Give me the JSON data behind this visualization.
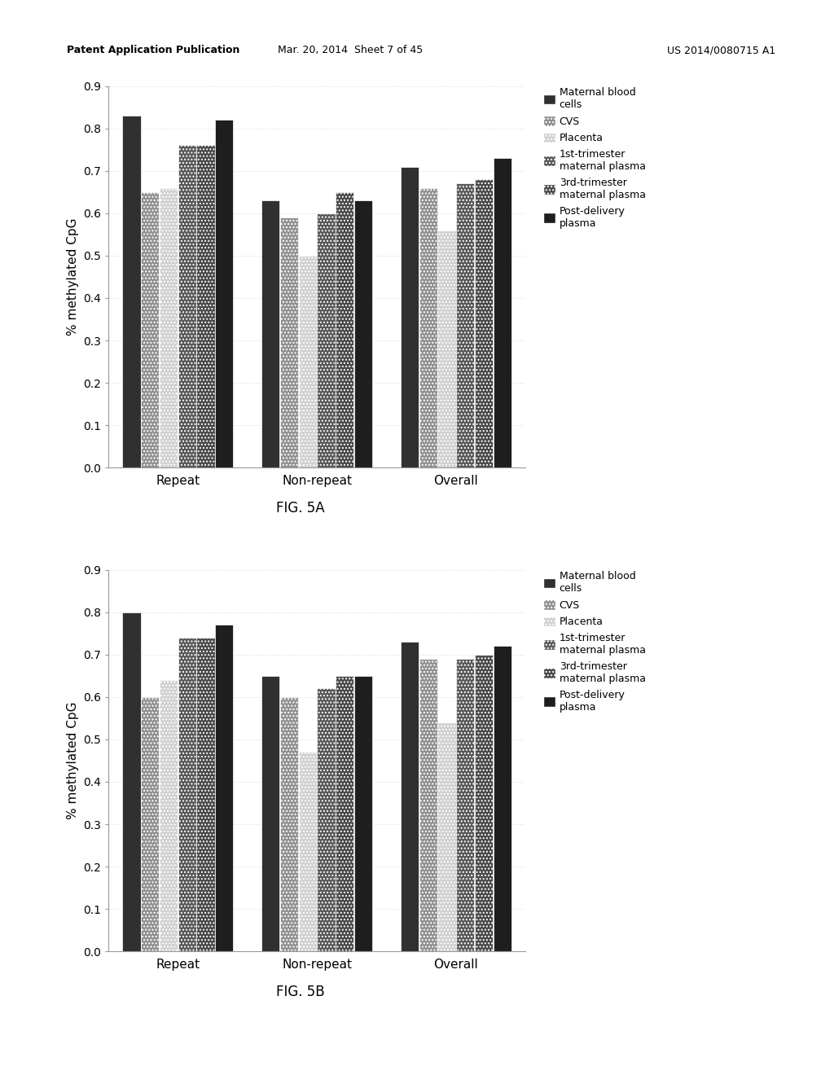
{
  "fig5a": {
    "categories": [
      "Repeat",
      "Non-repeat",
      "Overall"
    ],
    "series": [
      {
        "label": "Maternal blood cells",
        "values": [
          0.83,
          0.63,
          0.71
        ]
      },
      {
        "label": "CVS",
        "values": [
          0.65,
          0.59,
          0.66
        ]
      },
      {
        "label": "Placenta",
        "values": [
          0.66,
          0.5,
          0.56
        ]
      },
      {
        "label": "1st-trimester\nmaternal plasma",
        "values": [
          0.76,
          0.6,
          0.67
        ]
      },
      {
        "label": "3rd-trimester\nmaternal plasma",
        "values": [
          0.76,
          0.65,
          0.68
        ]
      },
      {
        "label": "Post-delivery\nplasma",
        "values": [
          0.82,
          0.63,
          0.73
        ]
      }
    ],
    "ylabel": "% methylated CpG",
    "ylim": [
      0,
      0.9
    ],
    "yticks": [
      0,
      0.1,
      0.2,
      0.3,
      0.4,
      0.5,
      0.6,
      0.7,
      0.8,
      0.9
    ],
    "caption": "FIG. 5A"
  },
  "fig5b": {
    "categories": [
      "Repeat",
      "Non-repeat",
      "Overall"
    ],
    "series": [
      {
        "label": "Maternal blood cells",
        "values": [
          0.8,
          0.65,
          0.73
        ]
      },
      {
        "label": "CVS",
        "values": [
          0.6,
          0.6,
          0.69
        ]
      },
      {
        "label": "Placenta",
        "values": [
          0.64,
          0.47,
          0.54
        ]
      },
      {
        "label": "1st-trimester\nmaternal plasma",
        "values": [
          0.74,
          0.62,
          0.69
        ]
      },
      {
        "label": "3rd-trimester\nmaternal plasma",
        "values": [
          0.74,
          0.65,
          0.7
        ]
      },
      {
        "label": "Post-delivery\nplasma",
        "values": [
          0.77,
          0.65,
          0.72
        ]
      }
    ],
    "ylabel": "% methylated CpG",
    "ylim": [
      0,
      0.9
    ],
    "yticks": [
      0,
      0.1,
      0.2,
      0.3,
      0.4,
      0.5,
      0.6,
      0.7,
      0.8,
      0.9
    ],
    "caption": "FIG. 5B"
  },
  "header_left": "Patent Application Publication",
  "header_mid": "Mar. 20, 2014  Sheet 7 of 45",
  "header_right": "US 2014/0080715 A1",
  "background_color": "#ffffff",
  "bar_styles": [
    {
      "color": "#2a2a2a",
      "hatch": "...."
    },
    {
      "color": "#aaaaaa",
      "hatch": "...."
    },
    {
      "color": "#d8d8d8",
      "hatch": "...."
    },
    {
      "color": "#555555",
      "hatch": "...."
    },
    {
      "color": "#777777",
      "hatch": "...."
    },
    {
      "color": "#1a1a1a",
      "hatch": "...."
    }
  ]
}
